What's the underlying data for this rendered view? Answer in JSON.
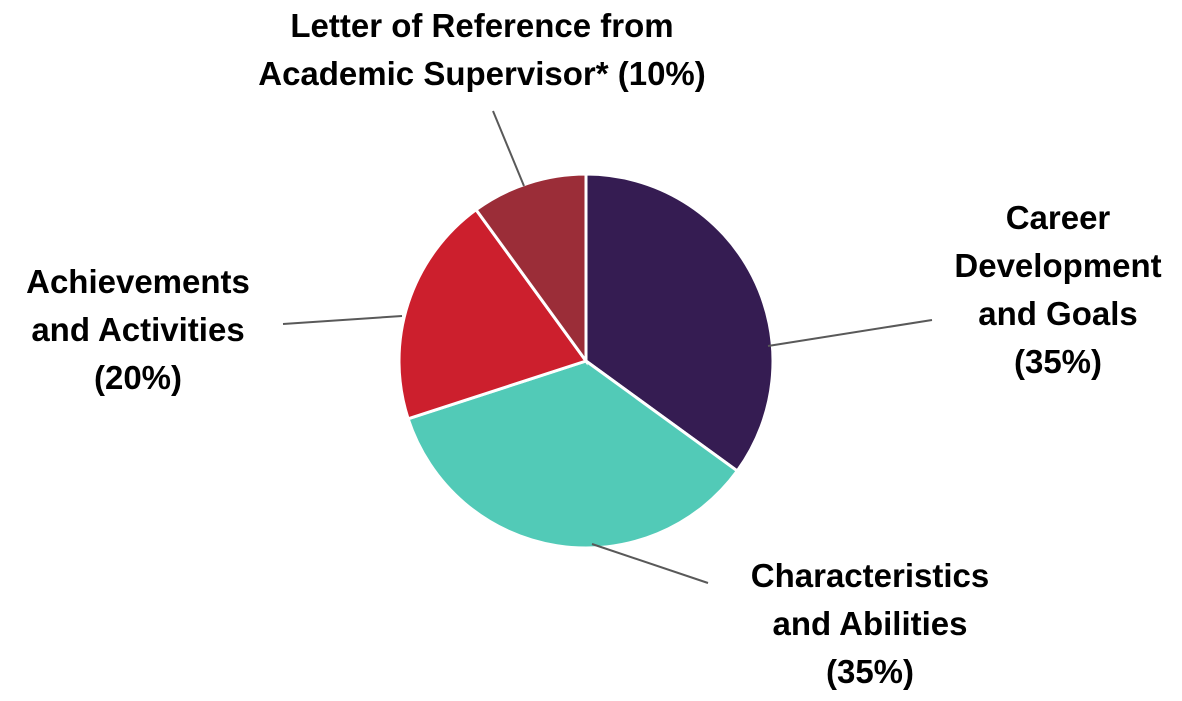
{
  "chart_data": {
    "type": "pie",
    "slices": [
      {
        "label": "Career Development and Goals",
        "value": 35,
        "color": "#351C52"
      },
      {
        "label": "Characteristics and Abilities",
        "value": 35,
        "color": "#52CAB7"
      },
      {
        "label": "Achievements and Activities",
        "value": 20,
        "color": "#CC1F2D"
      },
      {
        "label": "Letter of Reference from Academic Supervisor*",
        "value": 10,
        "color": "#9B2D38"
      }
    ],
    "data_labels": {
      "career": [
        "Career",
        "Development",
        "and Goals",
        "(35%)"
      ],
      "characteristics": [
        "Characteristics",
        "and Abilities",
        "(35%)"
      ],
      "achievements": [
        "Achievements",
        "and Activities",
        "(20%)"
      ],
      "letter": [
        "Letter of Reference from",
        "Academic Supervisor* (10%)"
      ]
    },
    "start_angle": "12 o'clock",
    "direction": "clockwise",
    "title": "",
    "legend": "none"
  }
}
